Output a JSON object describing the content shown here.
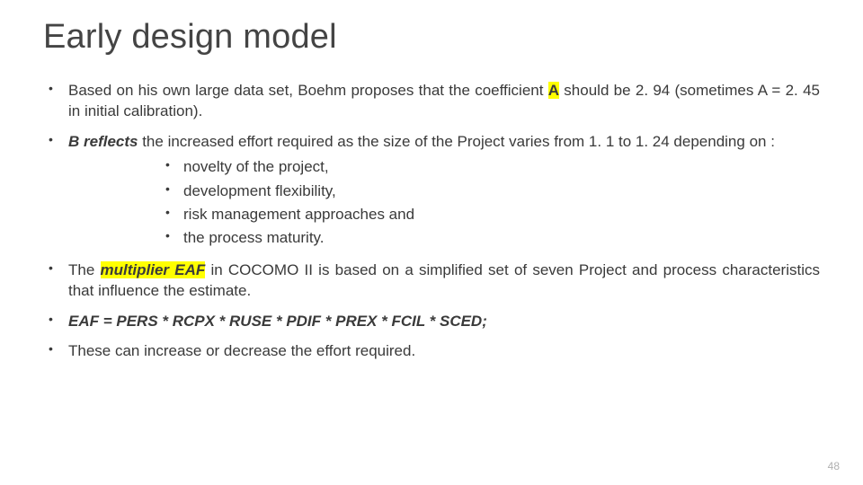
{
  "slide": {
    "title": "Early design model",
    "page_number": "48",
    "colors": {
      "background": "#ffffff",
      "text": "#3a3a3a",
      "title": "#444444",
      "highlight": "#ffff00",
      "page_number": "#b0b0b0"
    },
    "typography": {
      "title_fontsize": 38,
      "body_fontsize": 17,
      "page_number_fontsize": 12,
      "font_family": "Arial"
    },
    "bullets": {
      "b1_pre": "Based on his own large data set, Boehm proposes that the coefficient ",
      "b1_hl": "A",
      "b1_post": " should be 2. 94 (sometimes A = 2. 45 in initial calibration).",
      "b2_bold": "B reflects",
      "b2_rest": " the increased effort required as the size of the Project varies from 1. 1 to 1. 24 depending on :",
      "b2_sub": [
        "novelty of the project,",
        "development flexibility,",
        "risk management approaches and",
        "the process maturity."
      ],
      "b3_pre": "The ",
      "b3_hl": "multiplier EAF",
      "b3_post": " in COCOMO II is based on a simplified set of seven Project and process characteristics that influence the estimate.",
      "b4": "EAF = PERS * RCPX * RUSE * PDIF * PREX * FCIL * SCED;",
      "b5": "These can increase or decrease the effort required."
    }
  }
}
